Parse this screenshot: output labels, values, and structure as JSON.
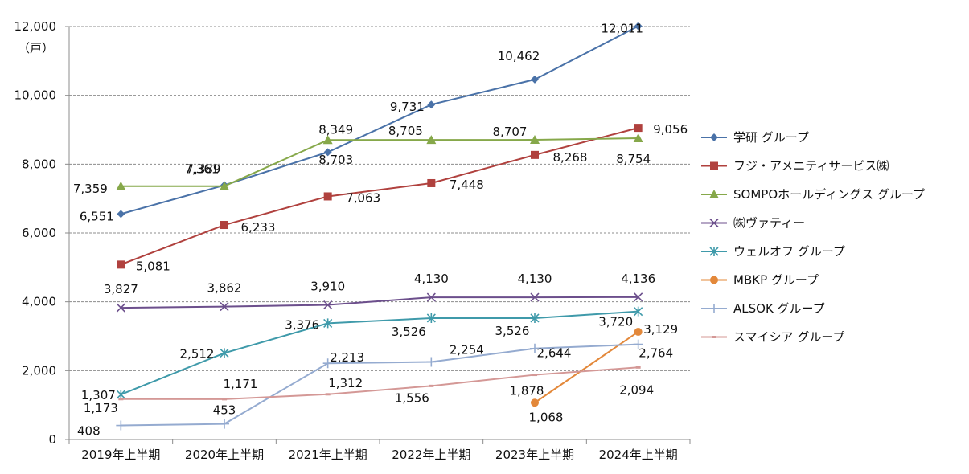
{
  "chart_data": {
    "type": "line",
    "ylabel": "（戸）",
    "ylim": [
      0,
      12000
    ],
    "yticks": [
      0,
      2000,
      4000,
      6000,
      8000,
      10000,
      12000
    ],
    "ytick_labels": [
      "0",
      "2,000",
      "4,000",
      "6,000",
      "8,000",
      "10,000",
      "12,000"
    ],
    "grid": true,
    "legend_position": "right",
    "categories": [
      "2019年上半期",
      "2020年上半期",
      "2021年上半期",
      "2022年上半期",
      "2023年上半期",
      "2024年上半期"
    ],
    "series": [
      {
        "name": "学研 グループ",
        "color": "#4a72a8",
        "marker": "diamond",
        "values": [
          6551,
          7389,
          8349,
          9731,
          10462,
          12011
        ],
        "labels": [
          "6,551",
          "7,389",
          "8,349",
          "9,731",
          "10,462",
          "12,011"
        ]
      },
      {
        "name": "フジ・アメニティサービス㈱",
        "color": "#b0413e",
        "marker": "square",
        "values": [
          5081,
          6233,
          7063,
          7448,
          8268,
          9056
        ],
        "labels": [
          "5,081",
          "6,233",
          "7,063",
          "7,448",
          "8,268",
          "9,056"
        ]
      },
      {
        "name": "SOMPOホールディングス グループ",
        "color": "#86a84a",
        "marker": "triangle",
        "values": [
          7359,
          7361,
          8703,
          8705,
          8707,
          8754
        ],
        "labels": [
          "7,359",
          "7,361",
          "8,703",
          "8,705",
          "8,707",
          "8,754"
        ]
      },
      {
        "name": "㈱ヴァティー",
        "color": "#6c4f8c",
        "marker": "x",
        "values": [
          3827,
          3862,
          3910,
          4130,
          4130,
          4136
        ],
        "labels": [
          "3,827",
          "3,862",
          "3,910",
          "4,130",
          "4,130",
          "4,136"
        ]
      },
      {
        "name": "ウェルオフ グループ",
        "color": "#3f9aaa",
        "marker": "star",
        "values": [
          1307,
          2512,
          3376,
          3526,
          3526,
          3720
        ],
        "labels": [
          "1,307",
          "2,512",
          "3,376",
          "3,526",
          "3,526",
          "3,720"
        ]
      },
      {
        "name": "MBKP グループ",
        "color": "#e3883a",
        "marker": "circle",
        "values": [
          null,
          null,
          null,
          null,
          1068,
          3129
        ],
        "labels": [
          null,
          null,
          null,
          null,
          "1,068",
          "3,129"
        ]
      },
      {
        "name": "ALSOK グループ",
        "color": "#95abd0",
        "marker": "plus",
        "values": [
          408,
          453,
          2213,
          2254,
          2644,
          2764
        ],
        "labels": [
          "408",
          "453",
          "2,213",
          "2,254",
          "2,644",
          "2,764"
        ]
      },
      {
        "name": "スマイシア グループ",
        "color": "#d49896",
        "marker": "dash",
        "values": [
          1173,
          1171,
          1312,
          1556,
          1878,
          2094
        ],
        "labels": [
          "1,173",
          "1,171",
          "1,312",
          "1,556",
          "1,878",
          "2,094"
        ]
      }
    ]
  }
}
